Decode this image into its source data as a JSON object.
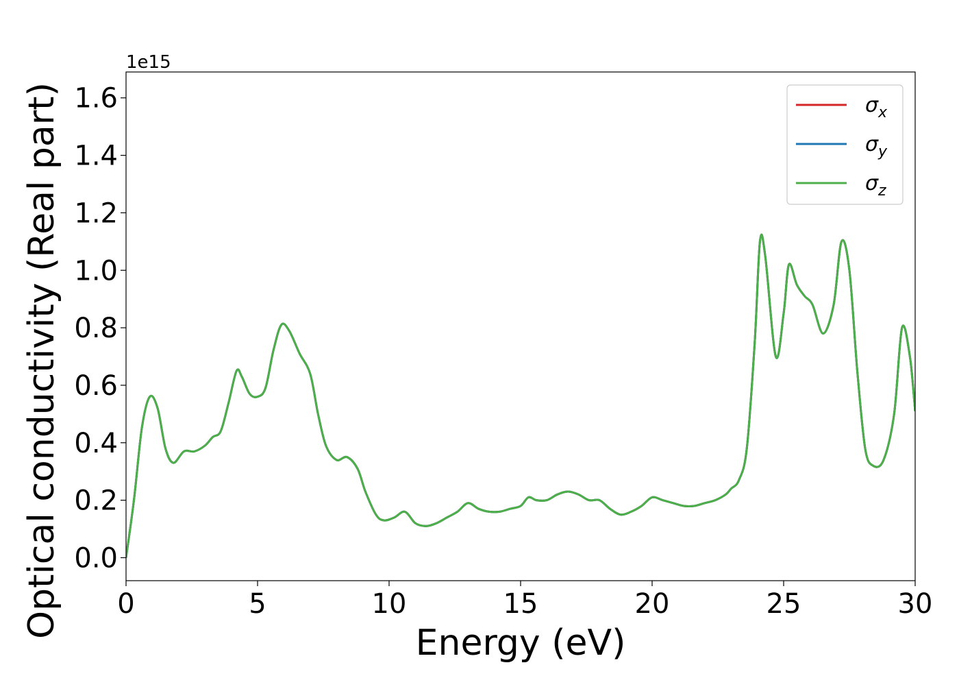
{
  "chart_data": {
    "type": "line",
    "title": "",
    "xlabel": "Energy (eV)",
    "ylabel": "Optical conductivity (Real part)",
    "y_offset_label": "1e15",
    "xlim": [
      0,
      30
    ],
    "ylim": [
      -0.08,
      1.69
    ],
    "x_ticks": [
      0,
      5,
      10,
      15,
      20,
      25,
      30
    ],
    "y_ticks": [
      0.0,
      0.2,
      0.4,
      0.6,
      0.8,
      1.0,
      1.2,
      1.4,
      1.6
    ],
    "x_tick_labels": [
      "0",
      "5",
      "10",
      "15",
      "20",
      "25",
      "30"
    ],
    "y_tick_labels": [
      "0.0",
      "0.2",
      "0.4",
      "0.6",
      "0.8",
      "1.0",
      "1.2",
      "1.4",
      "1.6"
    ],
    "grid": false,
    "legend_position": "top-right",
    "series": [
      {
        "name": "σx",
        "base": "σ",
        "sub": "x",
        "color": "#d62728"
      },
      {
        "name": "σy",
        "base": "σ",
        "sub": "y",
        "color": "#1f77b4"
      },
      {
        "name": "σz",
        "base": "σ",
        "sub": "z",
        "color": "#4daf4a"
      }
    ],
    "x": [
      0,
      0.3,
      0.6,
      0.9,
      1.2,
      1.5,
      1.8,
      2.2,
      2.6,
      3.0,
      3.3,
      3.6,
      3.9,
      4.2,
      4.4,
      4.7,
      5.0,
      5.3,
      5.6,
      5.9,
      6.2,
      6.6,
      7.0,
      7.3,
      7.6,
      8.0,
      8.4,
      8.8,
      9.1,
      9.5,
      9.8,
      10.2,
      10.6,
      11.0,
      11.4,
      11.8,
      12.2,
      12.6,
      13.0,
      13.4,
      13.8,
      14.2,
      14.6,
      15.0,
      15.3,
      15.6,
      16.0,
      16.4,
      16.8,
      17.2,
      17.6,
      18.0,
      18.4,
      18.8,
      19.2,
      19.6,
      20.0,
      20.4,
      20.8,
      21.2,
      21.6,
      22.0,
      22.4,
      22.8,
      23.0,
      23.3,
      23.6,
      23.9,
      24.1,
      24.3,
      24.7,
      25.0,
      25.2,
      25.5,
      25.8,
      26.1,
      26.5,
      26.9,
      27.2,
      27.5,
      27.8,
      28.1,
      28.4,
      28.8,
      29.2,
      29.5,
      29.8,
      30.0
    ],
    "values": [
      0.0,
      0.2,
      0.45,
      0.56,
      0.52,
      0.38,
      0.33,
      0.37,
      0.37,
      0.39,
      0.42,
      0.44,
      0.54,
      0.65,
      0.63,
      0.57,
      0.56,
      0.59,
      0.72,
      0.81,
      0.79,
      0.71,
      0.64,
      0.5,
      0.39,
      0.34,
      0.35,
      0.31,
      0.23,
      0.15,
      0.13,
      0.14,
      0.16,
      0.12,
      0.11,
      0.12,
      0.14,
      0.16,
      0.19,
      0.17,
      0.16,
      0.16,
      0.17,
      0.18,
      0.21,
      0.2,
      0.2,
      0.22,
      0.23,
      0.22,
      0.2,
      0.2,
      0.17,
      0.15,
      0.16,
      0.18,
      0.21,
      0.2,
      0.19,
      0.18,
      0.18,
      0.19,
      0.2,
      0.22,
      0.24,
      0.27,
      0.38,
      0.75,
      1.1,
      1.05,
      0.7,
      0.85,
      1.02,
      0.95,
      0.91,
      0.88,
      0.78,
      0.88,
      1.1,
      1.0,
      0.65,
      0.38,
      0.32,
      0.34,
      0.5,
      0.8,
      0.7,
      0.51
    ]
  }
}
